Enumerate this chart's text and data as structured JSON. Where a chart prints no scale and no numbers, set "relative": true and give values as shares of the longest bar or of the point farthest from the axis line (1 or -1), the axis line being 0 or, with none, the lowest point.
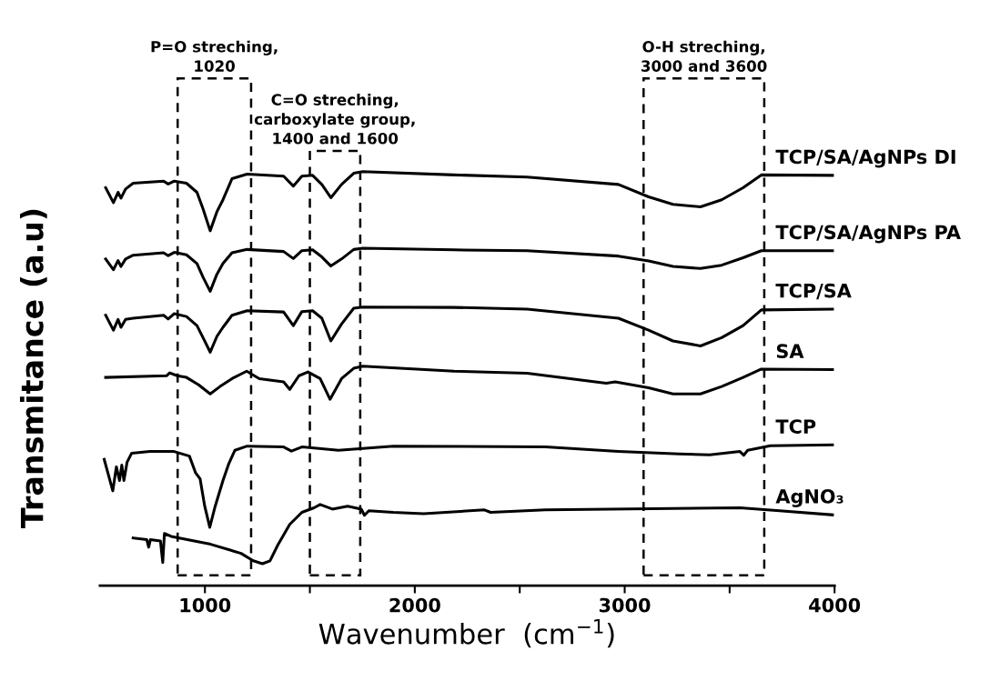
{
  "chart_data": {
    "type": "line",
    "relative": true,
    "xlabel": "Wavenumber  (cm$^{−1}$)",
    "ylabel": "Transmitance (a.u)",
    "xlim": [
      500,
      4000
    ],
    "xticks": [
      1000,
      {
        "value": 1500,
        "label": null
      },
      2000,
      {
        "value": 2500,
        "label": null
      },
      3000,
      {
        "value": 3500,
        "label": null
      },
      4000
    ],
    "legend": false,
    "marker": "none",
    "line_style": "solid",
    "grid": false,
    "bands": [
      {
        "axis": "x",
        "from": 870,
        "to": 1220,
        "label": "P=O streching,\n1020",
        "color": "#000000"
      },
      {
        "axis": "x",
        "from": 1500,
        "to": 1740,
        "label": "C=O streching,\ncarboxylate group,\n1400 and 1600",
        "color": "#000000"
      },
      {
        "axis": "x",
        "from": 3090,
        "to": 3665,
        "label": "O-H streching,\n3000 and 3600",
        "color": "#000000"
      }
    ],
    "series": [
      {
        "name": "TCP/SA/AgNPs DI",
        "color": "#000000",
        "x": [
          527,
          564,
          586,
          600,
          622,
          658,
          803,
          825,
          854,
          912,
          962,
          991,
          1025,
          1057,
          1086,
          1129,
          1201,
          1375,
          1421,
          1462,
          1513,
          1557,
          1600,
          1651,
          1709,
          1752,
          2187,
          2535,
          2970,
          3114,
          3230,
          3361,
          3462,
          3564,
          3651,
          3990
        ],
        "values": [
          0.961,
          0.925,
          0.95,
          0.936,
          0.958,
          0.972,
          0.977,
          0.97,
          0.977,
          0.972,
          0.95,
          0.91,
          0.857,
          0.903,
          0.932,
          0.983,
          0.994,
          0.989,
          0.965,
          0.989,
          0.991,
          0.969,
          0.937,
          0.969,
          0.996,
          1,
          0.992,
          0.987,
          0.969,
          0.939,
          0.921,
          0.915,
          0.932,
          0.961,
          0.992,
          0.991
        ]
      },
      {
        "name": "TCP/SA/AgNPs PA",
        "color": "#000000",
        "x": [
          527,
          564,
          586,
          600,
          622,
          658,
          803,
          825,
          854,
          912,
          962,
          991,
          1025,
          1057,
          1086,
          1129,
          1201,
          1375,
          1421,
          1462,
          1513,
          1557,
          1600,
          1651,
          1709,
          1752,
          2187,
          2535,
          2970,
          3114,
          3230,
          3361,
          3462,
          3564,
          3651,
          3990
        ],
        "values": [
          0.789,
          0.763,
          0.785,
          0.771,
          0.789,
          0.798,
          0.804,
          0.797,
          0.805,
          0.799,
          0.778,
          0.745,
          0.711,
          0.752,
          0.778,
          0.804,
          0.812,
          0.807,
          0.79,
          0.809,
          0.811,
          0.794,
          0.772,
          0.789,
          0.812,
          0.815,
          0.811,
          0.809,
          0.796,
          0.784,
          0.771,
          0.766,
          0.774,
          0.792,
          0.809,
          0.809
        ]
      },
      {
        "name": "TCP/SA",
        "color": "#000000",
        "x": [
          527,
          564,
          586,
          600,
          622,
          658,
          803,
          825,
          854,
          912,
          962,
          991,
          1025,
          1057,
          1086,
          1129,
          1201,
          1375,
          1421,
          1462,
          1513,
          1557,
          1600,
          1651,
          1709,
          1752,
          2187,
          2535,
          2970,
          3114,
          3230,
          3361,
          3462,
          3564,
          3651,
          3990
        ],
        "values": [
          0.653,
          0.617,
          0.643,
          0.624,
          0.643,
          0.646,
          0.653,
          0.644,
          0.657,
          0.65,
          0.628,
          0.599,
          0.564,
          0.602,
          0.624,
          0.653,
          0.664,
          0.661,
          0.628,
          0.662,
          0.664,
          0.646,
          0.591,
          0.632,
          0.67,
          0.673,
          0.672,
          0.668,
          0.646,
          0.617,
          0.591,
          0.579,
          0.599,
          0.628,
          0.666,
          0.668
        ]
      },
      {
        "name": "SA",
        "color": "#000000",
        "x": [
          527,
          817,
          832,
          868,
          912,
          970,
          1025,
          1072,
          1129,
          1199,
          1259,
          1375,
          1404,
          1448,
          1491,
          1549,
          1596,
          1651,
          1709,
          1752,
          2187,
          2535,
          2912,
          2955,
          3114,
          3230,
          3361,
          3462,
          3564,
          3651,
          3990
        ],
        "values": [
          0.503,
          0.507,
          0.514,
          0.507,
          0.503,
          0.485,
          0.463,
          0.481,
          0.5,
          0.518,
          0.5,
          0.492,
          0.474,
          0.507,
          0.516,
          0.5,
          0.45,
          0.5,
          0.525,
          0.53,
          0.518,
          0.513,
          0.489,
          0.492,
          0.478,
          0.463,
          0.463,
          0.481,
          0.503,
          0.523,
          0.522
        ]
      },
      {
        "name": "TCP",
        "color": "#000000",
        "x": [
          520,
          561,
          578,
          593,
          604,
          614,
          629,
          651,
          738,
          853,
          926,
          955,
          977,
          999,
          1023,
          1049,
          1086,
          1114,
          1143,
          1201,
          1375,
          1412,
          1462,
          1636,
          1897,
          2622,
          2970,
          3260,
          3405,
          3549,
          3567,
          3586,
          3694,
          3990
        ],
        "values": [
          0.305,
          0.229,
          0.287,
          0.254,
          0.291,
          0.254,
          0.298,
          0.32,
          0.324,
          0.324,
          0.313,
          0.273,
          0.258,
          0.192,
          0.141,
          0.192,
          0.254,
          0.295,
          0.327,
          0.337,
          0.335,
          0.325,
          0.335,
          0.327,
          0.337,
          0.335,
          0.324,
          0.318,
          0.316,
          0.324,
          0.315,
          0.327,
          0.338,
          0.34
        ]
      },
      {
        "name": "AgNO₃",
        "color": "#000000",
        "x": [
          658,
          723,
          732,
          740,
          788,
          799,
          807,
          839,
          1027,
          1172,
          1230,
          1274,
          1310,
          1346,
          1404,
          1462,
          1520,
          1549,
          1607,
          1680,
          1745,
          1760,
          1781,
          1897,
          2042,
          2332,
          2361,
          2622,
          3549,
          3738,
          3990
        ],
        "values": [
          0.115,
          0.111,
          0.093,
          0.111,
          0.108,
          0.056,
          0.126,
          0.119,
          0.1,
          0.078,
          0.06,
          0.053,
          0.06,
          0.097,
          0.148,
          0.177,
          0.188,
          0.196,
          0.185,
          0.192,
          0.185,
          0.17,
          0.181,
          0.177,
          0.174,
          0.183,
          0.177,
          0.183,
          0.188,
          0.181,
          0.171
        ]
      }
    ]
  }
}
